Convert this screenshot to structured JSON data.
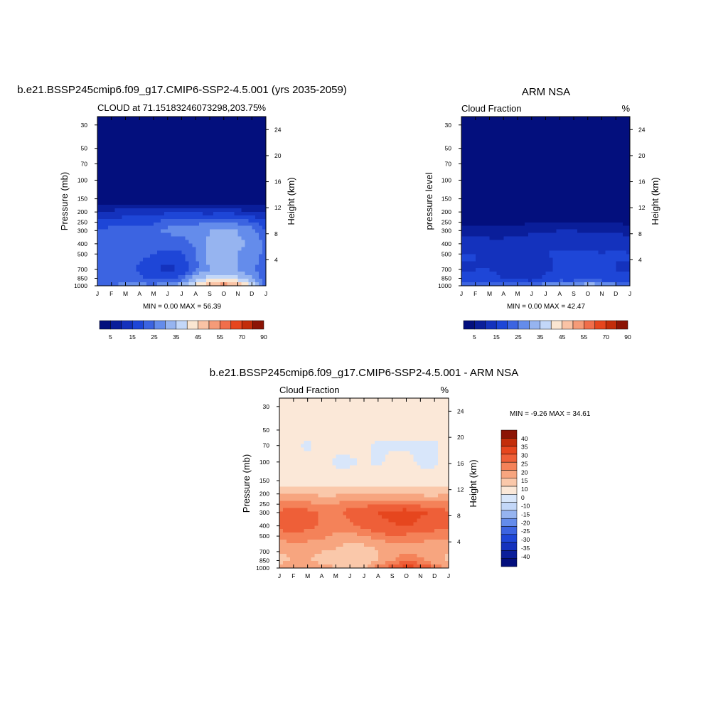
{
  "colors": {
    "seq": [
      "#030f7d",
      "#0a1e9a",
      "#1432bd",
      "#1e46d7",
      "#3c64e1",
      "#648ceb",
      "#96b4f0",
      "#c3d7f8",
      "#fae6d2",
      "#fac3a5",
      "#f59b78",
      "#f06e4b",
      "#e6461e",
      "#c32d0a",
      "#8c1405"
    ],
    "diff": [
      "#030f7d",
      "#0a1e9a",
      "#1432bd",
      "#1e46d7",
      "#3c64e1",
      "#648ceb",
      "#96b4f0",
      "#c3d7f8",
      "#d8e6fa",
      "#fbe8d8",
      "#fac8aa",
      "#f7a57f",
      "#f48259",
      "#ee5f38",
      "#e6461e",
      "#c32d0a",
      "#8c1405"
    ]
  },
  "panels": [
    {
      "id": "model",
      "title": "b.e21.BSSP245cmip6.f09_g17.CMIP6-SSP2-4.5.001 (yrs 2035-2059)",
      "subtitle_left": "CLOUD at 71.15183246073298,203.75",
      "subtitle_right": "%",
      "ylabel": "Pressure (mb)",
      "ylabel_right": "Height (km)",
      "stats": "MIN =   0.00 MAX =  56.39"
    },
    {
      "id": "obs",
      "title": "ARM NSA",
      "subtitle_left": "Cloud Fraction",
      "subtitle_right": "%",
      "ylabel": "pressure level",
      "ylabel_right": "Height (km)",
      "stats": "MIN =   0.00 MAX =  42.47"
    },
    {
      "id": "diff",
      "title": "b.e21.BSSP245cmip6.f09_g17.CMIP6-SSP2-4.5.001 - ARM NSA",
      "subtitle_left": "Cloud Fraction",
      "subtitle_right": "%",
      "ylabel": "Pressure (mb)",
      "ylabel_right": "Height (km)",
      "stats": "MIN =  -9.26 MAX =  34.61"
    }
  ],
  "chart_data": [
    {
      "type": "heatmap",
      "title": "b.e21.BSSP245cmip6.f09_g17.CMIP6-SSP2-4.5.001 (yrs 2035-2059)",
      "subtitle": "CLOUD at 71.15183246073298,203.75",
      "units": "%",
      "xlabel": "",
      "ylabel": "Pressure (mb)",
      "ylabel_right": "Height (km)",
      "x_ticks": [
        "J",
        "F",
        "M",
        "A",
        "M",
        "J",
        "J",
        "A",
        "S",
        "O",
        "N",
        "D",
        "J"
      ],
      "y_ticks": [
        "30",
        "50",
        "70",
        "100",
        "150",
        "200",
        "250",
        "300",
        "400",
        "500",
        "700",
        "850",
        "1000"
      ],
      "y_right_ticks": [
        "24",
        "20",
        "16",
        "12",
        "8",
        "4"
      ],
      "y_scale": "log",
      "colorbar_labels": [
        "5",
        "15",
        "25",
        "35",
        "45",
        "55",
        "70",
        "90"
      ],
      "colorbar_levels": [
        5,
        10,
        15,
        20,
        25,
        30,
        35,
        40,
        45,
        50,
        55,
        60,
        70,
        80,
        90
      ],
      "min": 0.0,
      "max": 56.39,
      "levels_mb": [
        1000,
        850,
        700,
        600,
        500,
        400,
        300,
        250,
        200,
        170,
        150,
        100,
        70,
        50,
        30
      ],
      "values": [
        [
          22,
          24,
          28,
          27,
          26,
          30,
          34,
          42,
          50,
          55,
          50,
          40,
          22
        ],
        [
          20,
          22,
          24,
          21,
          19,
          17,
          22,
          33,
          38,
          38,
          36,
          30,
          20
        ],
        [
          21,
          22,
          23,
          19,
          16,
          13,
          16,
          24,
          30,
          32,
          30,
          26,
          21
        ],
        [
          22,
          23,
          24,
          20,
          17,
          15,
          17,
          24,
          31,
          32,
          30,
          27,
          22
        ],
        [
          23,
          24,
          24,
          22,
          20,
          18,
          19,
          25,
          31,
          32,
          30,
          28,
          23
        ],
        [
          24,
          25,
          25,
          24,
          23,
          22,
          23,
          26,
          31,
          32,
          31,
          29,
          24
        ],
        [
          21,
          22,
          22,
          22,
          24,
          26,
          27,
          28,
          30,
          31,
          30,
          27,
          21
        ],
        [
          16,
          17,
          18,
          17,
          19,
          23,
          24,
          24,
          24,
          25,
          24,
          21,
          16
        ],
        [
          10,
          11,
          13,
          13,
          13,
          14,
          15,
          14,
          13,
          14,
          13,
          10,
          10
        ],
        [
          4,
          5,
          6,
          5,
          5,
          6,
          6,
          5,
          5,
          5,
          5,
          4,
          4
        ],
        [
          2,
          2,
          2,
          2,
          2,
          2,
          2,
          2,
          2,
          2,
          2,
          2,
          2
        ],
        [
          1,
          1,
          1,
          1,
          1,
          1,
          1,
          1,
          1,
          1,
          1,
          1,
          1
        ],
        [
          0,
          0,
          0,
          0,
          0,
          0,
          0,
          0,
          0,
          0,
          0,
          0,
          0
        ],
        [
          0,
          0,
          0,
          0,
          0,
          0,
          0,
          0,
          0,
          0,
          0,
          0,
          0
        ],
        [
          0,
          0,
          0,
          0,
          0,
          0,
          0,
          0,
          0,
          0,
          0,
          0,
          0
        ]
      ]
    },
    {
      "type": "heatmap",
      "title": "ARM NSA",
      "subtitle": "Cloud Fraction",
      "units": "%",
      "xlabel": "",
      "ylabel": "pressure level",
      "ylabel_right": "Height (km)",
      "x_ticks": [
        "J",
        "F",
        "M",
        "A",
        "M",
        "J",
        "J",
        "A",
        "S",
        "O",
        "N",
        "D",
        "J"
      ],
      "y_ticks": [
        "30",
        "50",
        "70",
        "100",
        "150",
        "200",
        "250",
        "300",
        "400",
        "500",
        "700",
        "850",
        "1000"
      ],
      "y_right_ticks": [
        "24",
        "20",
        "16",
        "12",
        "8",
        "4"
      ],
      "y_scale": "log",
      "colorbar_labels": [
        "5",
        "15",
        "25",
        "35",
        "45",
        "55",
        "70",
        "90"
      ],
      "colorbar_levels": [
        5,
        10,
        15,
        20,
        25,
        30,
        35,
        40,
        45,
        50,
        55,
        60,
        70,
        80,
        90
      ],
      "min": 0.0,
      "max": 42.47,
      "levels_mb": [
        1000,
        950,
        850,
        700,
        600,
        500,
        400,
        300,
        250,
        200,
        150,
        100,
        70,
        50,
        30
      ],
      "values": [
        [
          33,
          36,
          36,
          34,
          34,
          36,
          40,
          40,
          38,
          42,
          41,
          38,
          33
        ],
        [
          19,
          21,
          21,
          19,
          18,
          17,
          21,
          23,
          22,
          28,
          24,
          21,
          19
        ],
        [
          16,
          17,
          17,
          15,
          14,
          13,
          16,
          18,
          18,
          19,
          17,
          17,
          16
        ],
        [
          14,
          15,
          15,
          13,
          12,
          12,
          14,
          16,
          17,
          16,
          15,
          15,
          14
        ],
        [
          15,
          15,
          14,
          14,
          13,
          13,
          14,
          16,
          17,
          16,
          15,
          15,
          15
        ],
        [
          15,
          15,
          14,
          13,
          14,
          14,
          15,
          16,
          16,
          16,
          15,
          16,
          15
        ],
        [
          13,
          13,
          12,
          12,
          13,
          13,
          13,
          14,
          14,
          14,
          13,
          14,
          13
        ],
        [
          8,
          8,
          7,
          7,
          8,
          9,
          9,
          10,
          10,
          9,
          9,
          9,
          8
        ],
        [
          4,
          4,
          3,
          3,
          4,
          4,
          4,
          5,
          5,
          4,
          4,
          4,
          4
        ],
        [
          2,
          2,
          2,
          2,
          2,
          2,
          2,
          2,
          2,
          2,
          2,
          2,
          2
        ],
        [
          1,
          1,
          1,
          1,
          1,
          1,
          1,
          1,
          1,
          1,
          1,
          1,
          1
        ],
        [
          0,
          0,
          0,
          0,
          0,
          0,
          0,
          0,
          0,
          0,
          0,
          0,
          0
        ],
        [
          0,
          0,
          0,
          0,
          0,
          0,
          0,
          0,
          0,
          0,
          0,
          0,
          0
        ],
        [
          0,
          0,
          0,
          0,
          0,
          0,
          0,
          0,
          0,
          0,
          0,
          0,
          0
        ],
        [
          0,
          0,
          0,
          0,
          0,
          0,
          0,
          0,
          0,
          0,
          0,
          0,
          0
        ]
      ]
    },
    {
      "type": "heatmap",
      "title": "b.e21.BSSP245cmip6.f09_g17.CMIP6-SSP2-4.5.001 - ARM NSA",
      "subtitle": "Cloud Fraction",
      "units": "%",
      "xlabel": "",
      "ylabel": "Pressure (mb)",
      "ylabel_right": "Height (km)",
      "x_ticks": [
        "J",
        "F",
        "M",
        "A",
        "M",
        "J",
        "J",
        "A",
        "S",
        "O",
        "N",
        "D",
        "J"
      ],
      "y_ticks": [
        "30",
        "50",
        "70",
        "100",
        "150",
        "200",
        "250",
        "300",
        "400",
        "500",
        "700",
        "850",
        "1000"
      ],
      "y_right_ticks": [
        "24",
        "20",
        "16",
        "12",
        "8",
        "4"
      ],
      "y_scale": "log",
      "colorbar_labels": [
        "40",
        "35",
        "30",
        "25",
        "20",
        "15",
        "10",
        "0",
        "-10",
        "-15",
        "-20",
        "-25",
        "-30",
        "-35",
        "-40"
      ],
      "colorbar_levels": [
        -40,
        -35,
        -30,
        -25,
        -20,
        -15,
        -10,
        -5,
        0,
        5,
        10,
        15,
        20,
        25,
        30,
        35,
        40
      ],
      "min": -9.26,
      "max": 34.61,
      "levels_mb": [
        1000,
        850,
        700,
        600,
        500,
        400,
        300,
        250,
        200,
        170,
        150,
        100,
        70,
        50,
        30
      ],
      "values": [
        [
          12,
          13,
          13,
          12,
          10,
          6,
          8,
          18,
          24,
          28,
          26,
          20,
          12
        ],
        [
          9,
          10,
          10,
          9,
          8,
          5,
          6,
          10,
          14,
          20,
          16,
          12,
          9
        ],
        [
          10,
          11,
          11,
          10,
          9,
          7,
          7,
          10,
          12,
          14,
          13,
          11,
          10
        ],
        [
          13,
          14,
          14,
          13,
          12,
          9,
          10,
          12,
          14,
          15,
          14,
          13,
          13
        ],
        [
          17,
          18,
          17,
          16,
          14,
          13,
          15,
          18,
          20,
          19,
          17,
          18,
          17
        ],
        [
          22,
          24,
          22,
          19,
          16,
          19,
          22,
          24,
          24,
          26,
          23,
          22,
          22
        ],
        [
          21,
          23,
          22,
          19,
          18,
          22,
          23,
          25,
          27,
          28,
          26,
          24,
          21
        ],
        [
          17,
          18,
          17,
          14,
          15,
          18,
          19,
          19,
          19,
          20,
          18,
          17,
          17
        ],
        [
          10,
          11,
          10,
          9,
          9,
          10,
          11,
          10,
          9,
          10,
          9,
          8,
          10
        ],
        [
          5,
          5,
          4,
          4,
          4,
          5,
          5,
          4,
          4,
          4,
          4,
          4,
          5
        ],
        [
          2,
          2,
          2,
          2,
          2,
          2,
          2,
          2,
          2,
          2,
          2,
          2,
          2
        ],
        [
          2,
          1,
          1,
          2,
          -1,
          -1,
          1,
          -1,
          2,
          2,
          -1,
          -1,
          2
        ],
        [
          2,
          1,
          -1,
          2,
          2,
          2,
          1,
          -1,
          -1,
          -1,
          -1,
          -1,
          2
        ],
        [
          2,
          2,
          2,
          2,
          2,
          2,
          2,
          2,
          2,
          2,
          2,
          2,
          2
        ],
        [
          2,
          2,
          2,
          2,
          2,
          2,
          2,
          2,
          2,
          2,
          2,
          2,
          2
        ]
      ]
    }
  ]
}
